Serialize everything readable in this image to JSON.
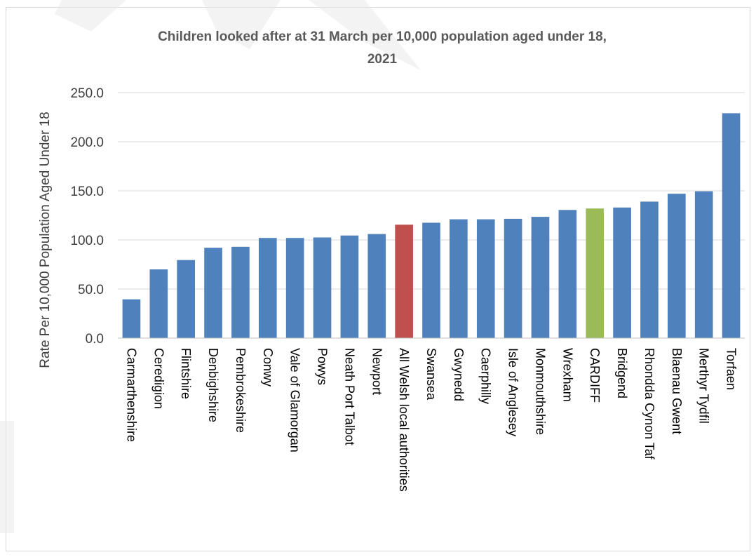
{
  "chart_data": {
    "type": "bar",
    "title_lines": [
      "Children looked after at 31 March per 10,000 population aged under 18,",
      "2021"
    ],
    "ylabel": "Rate Per 10,000 Population Aged Under 18",
    "xlabel": "",
    "ylim": [
      0,
      250
    ],
    "yticks": [
      "0.0",
      "50.0",
      "100.0",
      "150.0",
      "200.0",
      "250.0"
    ],
    "ytick_values": [
      0,
      50,
      100,
      150,
      200,
      250
    ],
    "grid": true,
    "legend": "none",
    "categories": [
      "Carmarthenshire",
      "Ceredigion",
      "Flintshire",
      "Denbighshire",
      "Pembrokeshire",
      "Conwy",
      "Vale of Glamorgan",
      "Powys",
      "Neath Port Talbot",
      "Newport",
      "All Welsh local authorities",
      "Swansea",
      "Gwynedd",
      "Caerphilly",
      "Isle of Anglesey",
      "Monmouthshire",
      "Wrexham",
      "CARDIFF",
      "Bridgend",
      "Rhondda Cynon Taf",
      "Blaenau Gwent",
      "Merthyr Tydfil",
      "Torfaen"
    ],
    "values": [
      39.5,
      70.0,
      79.5,
      92.0,
      93.0,
      102.0,
      102.0,
      102.5,
      104.5,
      106.0,
      115.5,
      117.5,
      121.0,
      121.0,
      121.5,
      123.5,
      130.5,
      132.0,
      133.0,
      139.0,
      147.0,
      149.5,
      229.0
    ],
    "bar_colors": [
      "#4f81bd",
      "#4f81bd",
      "#4f81bd",
      "#4f81bd",
      "#4f81bd",
      "#4f81bd",
      "#4f81bd",
      "#4f81bd",
      "#4f81bd",
      "#4f81bd",
      "#c0504d",
      "#4f81bd",
      "#4f81bd",
      "#4f81bd",
      "#4f81bd",
      "#4f81bd",
      "#4f81bd",
      "#9bbb59",
      "#4f81bd",
      "#4f81bd",
      "#4f81bd",
      "#4f81bd",
      "#4f81bd"
    ],
    "colors": {
      "default": "#4f81bd",
      "highlight_all_wales": "#c0504d",
      "highlight_cardiff": "#9bbb59"
    }
  }
}
